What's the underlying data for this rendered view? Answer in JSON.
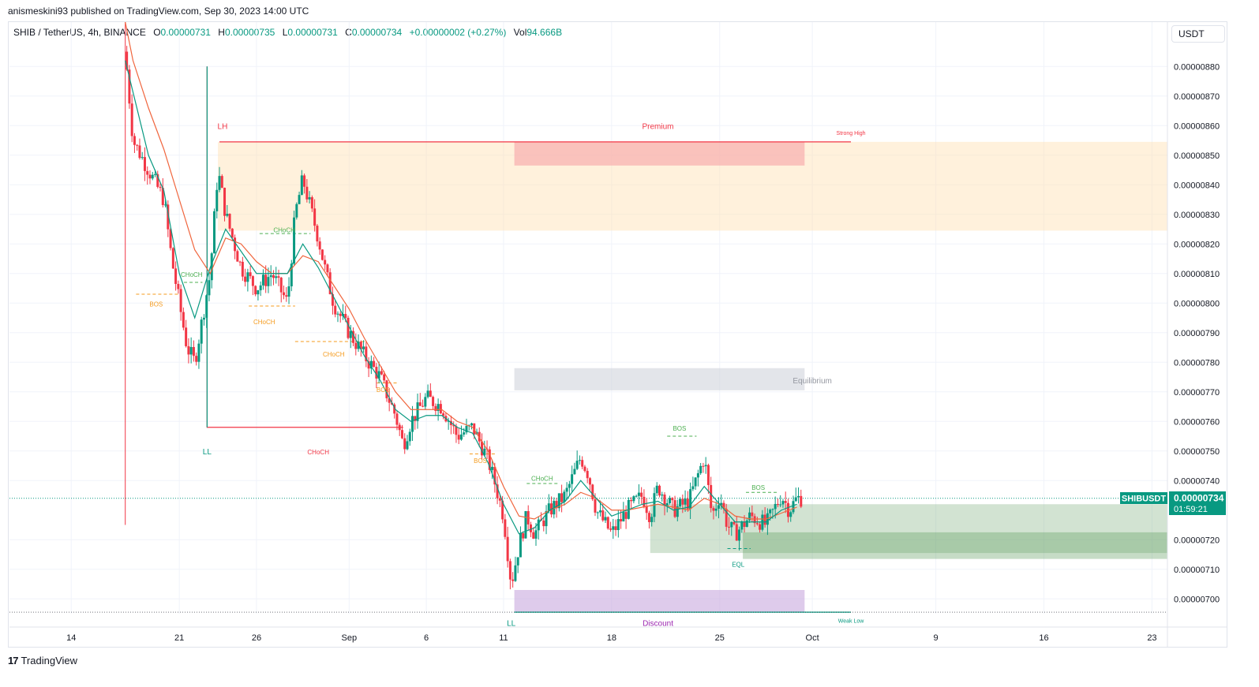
{
  "header": {
    "publisher": "anismeskini93 published on TradingView.com, Sep 30, 2023 14:00 UTC"
  },
  "legend": {
    "symbol": "SHIB / TetherUS, 4h, BINANCE",
    "open_label": "O",
    "open": "0.00000731",
    "high_label": "H",
    "high": "0.00000735",
    "low_label": "L",
    "low": "0.00000731",
    "close_label": "C",
    "close": "0.00000734",
    "change": "+0.00000002 (+0.27%)",
    "vol_label": "Vol",
    "vol": "94.666B"
  },
  "currency_button": "USDT",
  "price_tag": {
    "symbol": "SHIBUSDT",
    "price": "0.00000734",
    "countdown": "01:59:21"
  },
  "footer": {
    "brand": "TradingView"
  },
  "colors": {
    "up": "#089981",
    "down": "#f23645",
    "ema_fast": "#089981",
    "ema_slow": "#f0653d",
    "premium": "#f23645",
    "discount": "#9c27b0",
    "bos": "#f59b1e",
    "choch_bull": "#4caf50"
  },
  "chart_data": {
    "type": "candlestick",
    "title": "",
    "y_ticks": [
      "0.00000880",
      "0.00000870",
      "0.00000860",
      "0.00000850",
      "0.00000840",
      "0.00000830",
      "0.00000820",
      "0.00000810",
      "0.00000800",
      "0.00000790",
      "0.00000780",
      "0.00000770",
      "0.00000760",
      "0.00000750",
      "0.00000740",
      "0.00000720",
      "0.00000710",
      "0.00000700"
    ],
    "y_tick_values": [
      8.8,
      8.7,
      8.6,
      8.5,
      8.4,
      8.3,
      8.2,
      8.1,
      8.0,
      7.9,
      7.8,
      7.7,
      7.6,
      7.5,
      7.4,
      7.2,
      7.1,
      7.0
    ],
    "ylim": [
      6.95,
      8.95
    ],
    "x_ticks": [
      "14",
      "21",
      "26",
      "Sep",
      "6",
      "11",
      "18",
      "25",
      "Oct",
      "9",
      "16",
      "23"
    ],
    "x_tick_values": [
      14,
      21,
      26,
      32,
      37,
      42,
      49,
      56,
      62,
      70,
      77,
      84
    ],
    "xlim": [
      10,
      85
    ],
    "candle_anchors": [
      [
        17.5,
        8.85
      ],
      [
        18,
        8.55
      ],
      [
        19,
        8.45
      ],
      [
        20,
        8.35
      ],
      [
        20.5,
        8.15
      ],
      [
        21,
        8.0
      ],
      [
        21.5,
        7.85
      ],
      [
        22,
        7.8
      ],
      [
        22.5,
        7.95
      ],
      [
        23,
        8.1
      ],
      [
        23.5,
        8.45
      ],
      [
        24,
        8.3
      ],
      [
        25,
        8.12
      ],
      [
        26,
        8.05
      ],
      [
        27,
        8.1
      ],
      [
        28,
        8.0
      ],
      [
        28.5,
        8.3
      ],
      [
        29,
        8.42
      ],
      [
        30,
        8.22
      ],
      [
        30.5,
        8.1
      ],
      [
        31,
        8.0
      ],
      [
        32,
        7.9
      ],
      [
        33,
        7.82
      ],
      [
        34,
        7.75
      ],
      [
        35,
        7.62
      ],
      [
        35.5,
        7.52
      ],
      [
        36,
        7.6
      ],
      [
        37,
        7.68
      ],
      [
        38,
        7.65
      ],
      [
        39,
        7.55
      ],
      [
        40,
        7.58
      ],
      [
        41,
        7.47
      ],
      [
        41.5,
        7.38
      ],
      [
        42,
        7.28
      ],
      [
        42.5,
        7.05
      ],
      [
        43,
        7.18
      ],
      [
        43.5,
        7.28
      ],
      [
        44,
        7.22
      ],
      [
        45,
        7.3
      ],
      [
        46,
        7.35
      ],
      [
        47,
        7.48
      ],
      [
        47.5,
        7.42
      ],
      [
        48,
        7.3
      ],
      [
        49,
        7.22
      ],
      [
        50,
        7.3
      ],
      [
        51,
        7.35
      ],
      [
        51.5,
        7.28
      ],
      [
        52,
        7.38
      ],
      [
        53,
        7.3
      ],
      [
        54,
        7.33
      ],
      [
        55,
        7.48
      ],
      [
        55.5,
        7.28
      ],
      [
        56,
        7.35
      ],
      [
        56.5,
        7.25
      ],
      [
        57,
        7.22
      ],
      [
        58,
        7.28
      ],
      [
        59,
        7.25
      ],
      [
        60,
        7.35
      ],
      [
        60.5,
        7.3
      ],
      [
        61,
        7.34
      ]
    ],
    "ema_fast_anchors": [
      [
        17.5,
        8.82
      ],
      [
        19,
        8.5
      ],
      [
        20,
        8.38
      ],
      [
        21,
        8.1
      ],
      [
        22,
        7.95
      ],
      [
        23,
        8.12
      ],
      [
        24,
        8.25
      ],
      [
        26,
        8.1
      ],
      [
        28,
        8.1
      ],
      [
        29,
        8.2
      ],
      [
        30,
        8.12
      ],
      [
        31,
        8.02
      ],
      [
        32,
        7.92
      ],
      [
        33,
        7.82
      ],
      [
        34,
        7.74
      ],
      [
        35,
        7.64
      ],
      [
        36,
        7.6
      ],
      [
        37,
        7.62
      ],
      [
        38,
        7.62
      ],
      [
        39,
        7.58
      ],
      [
        40,
        7.56
      ],
      [
        41,
        7.46
      ],
      [
        42,
        7.32
      ],
      [
        43,
        7.22
      ],
      [
        44,
        7.24
      ],
      [
        45,
        7.3
      ],
      [
        46,
        7.33
      ],
      [
        47,
        7.4
      ],
      [
        48,
        7.34
      ],
      [
        49,
        7.28
      ],
      [
        50,
        7.3
      ],
      [
        51,
        7.32
      ],
      [
        52,
        7.33
      ],
      [
        53,
        7.3
      ],
      [
        54,
        7.31
      ],
      [
        55,
        7.38
      ],
      [
        56,
        7.32
      ],
      [
        57,
        7.26
      ],
      [
        58,
        7.26
      ],
      [
        59,
        7.26
      ],
      [
        60,
        7.3
      ],
      [
        61,
        7.32
      ]
    ],
    "ema_slow_anchors": [
      [
        17.5,
        8.95
      ],
      [
        18,
        8.82
      ],
      [
        19,
        8.66
      ],
      [
        20,
        8.52
      ],
      [
        21,
        8.35
      ],
      [
        22,
        8.18
      ],
      [
        23,
        8.1
      ],
      [
        24,
        8.22
      ],
      [
        25,
        8.2
      ],
      [
        26,
        8.14
      ],
      [
        27,
        8.1
      ],
      [
        28,
        8.1
      ],
      [
        29,
        8.16
      ],
      [
        30,
        8.14
      ],
      [
        31,
        8.06
      ],
      [
        32,
        7.98
      ],
      [
        33,
        7.88
      ],
      [
        34,
        7.79
      ],
      [
        35,
        7.7
      ],
      [
        36,
        7.64
      ],
      [
        37,
        7.64
      ],
      [
        38,
        7.64
      ],
      [
        39,
        7.6
      ],
      [
        40,
        7.58
      ],
      [
        41,
        7.5
      ],
      [
        42,
        7.38
      ],
      [
        43,
        7.28
      ],
      [
        44,
        7.27
      ],
      [
        45,
        7.3
      ],
      [
        46,
        7.32
      ],
      [
        47,
        7.36
      ],
      [
        48,
        7.34
      ],
      [
        49,
        7.3
      ],
      [
        50,
        7.3
      ],
      [
        51,
        7.31
      ],
      [
        52,
        7.32
      ],
      [
        53,
        7.31
      ],
      [
        54,
        7.3
      ],
      [
        55,
        7.34
      ],
      [
        56,
        7.32
      ],
      [
        57,
        7.28
      ],
      [
        58,
        7.27
      ],
      [
        59,
        7.27
      ],
      [
        60,
        7.29
      ],
      [
        61,
        7.31
      ]
    ],
    "premium_zone": {
      "x": [
        23.5,
        85
      ],
      "y": [
        8.245,
        8.545
      ]
    },
    "premium_core": {
      "x": [
        42.7,
        61.5
      ],
      "y": [
        8.465,
        8.545
      ]
    },
    "equilibrium_zone": {
      "x": [
        42.7,
        61.5
      ],
      "y": [
        7.705,
        7.78
      ]
    },
    "discount_zone": {
      "x": [
        42.7,
        61.5
      ],
      "y": [
        6.955,
        7.03
      ]
    },
    "demand_zone_1": {
      "x": [
        51.5,
        85
      ],
      "y": [
        7.155,
        7.32
      ]
    },
    "demand_zone_2": {
      "x": [
        57.5,
        85
      ],
      "y": [
        7.135,
        7.225
      ]
    },
    "current_price": 7.34,
    "labels": [
      {
        "text": "LH",
        "x": 23.8,
        "y": 8.6,
        "color": "#f23645"
      },
      {
        "text": "Premium",
        "x": 52,
        "y": 8.6,
        "color": "#f23645"
      },
      {
        "text": "Strong High",
        "x": 64.5,
        "y": 8.58,
        "color": "#f23645"
      },
      {
        "text": "Equilibrium",
        "x": 62,
        "y": 7.74,
        "color": "#9598a1"
      },
      {
        "text": "LL",
        "x": 22.8,
        "y": 7.5,
        "color": "#089981"
      },
      {
        "text": "CHoCH",
        "x": 30,
        "y": 7.5,
        "color": "#f23645"
      },
      {
        "text": "CHoCH",
        "x": 27.8,
        "y": 8.25,
        "color": "#4caf50"
      },
      {
        "text": "CHoCH",
        "x": 21.8,
        "y": 8.1,
        "color": "#4caf50"
      },
      {
        "text": "BOS",
        "x": 19.5,
        "y": 8.0,
        "color": "#f59b1e"
      },
      {
        "text": "CHoCH",
        "x": 26.5,
        "y": 7.94,
        "color": "#f59b1e"
      },
      {
        "text": "CHoCH",
        "x": 31,
        "y": 7.83,
        "color": "#f59b1e"
      },
      {
        "text": "BOS",
        "x": 34.2,
        "y": 7.71,
        "color": "#f59b1e"
      },
      {
        "text": "BOS",
        "x": 40.5,
        "y": 7.47,
        "color": "#f59b1e"
      },
      {
        "text": "CHoCH",
        "x": 44.5,
        "y": 7.41,
        "color": "#4caf50"
      },
      {
        "text": "BOS",
        "x": 53.4,
        "y": 7.58,
        "color": "#4caf50"
      },
      {
        "text": "BOS",
        "x": 58.5,
        "y": 7.38,
        "color": "#4caf50"
      },
      {
        "text": "EQL",
        "x": 57.2,
        "y": 7.12,
        "color": "#089981"
      },
      {
        "text": "Discount",
        "x": 52,
        "y": 6.92,
        "color": "#9c27b0"
      },
      {
        "text": "Weak Low",
        "x": 64.5,
        "y": 6.93,
        "color": "#089981"
      },
      {
        "text": "LL",
        "x": 42.5,
        "y": 6.92,
        "color": "#089981"
      }
    ],
    "structure_lines": [
      {
        "points": [
          [
            23.6,
            8.545
          ],
          [
            64.5,
            8.545
          ]
        ],
        "color": "#f23645",
        "dash": false
      },
      {
        "points": [
          [
            22.8,
            8.8
          ],
          [
            22.8,
            7.58
          ],
          [
            35.5,
            7.58
          ]
        ],
        "color": "#f23645",
        "dash": false,
        "first_seg_color": "#089981"
      },
      {
        "points": [
          [
            42.7,
            6.955
          ],
          [
            64.5,
            6.955
          ]
        ],
        "color": "#089981",
        "dash": false
      },
      {
        "points": [
          [
            18.2,
            8.03
          ],
          [
            21,
            8.03
          ]
        ],
        "color": "#f59b1e",
        "dash": true
      },
      {
        "points": [
          [
            25.5,
            7.99
          ],
          [
            28.5,
            7.99
          ]
        ],
        "color": "#f59b1e",
        "dash": true
      },
      {
        "points": [
          [
            28.5,
            7.87
          ],
          [
            33,
            7.87
          ]
        ],
        "color": "#f59b1e",
        "dash": true
      },
      {
        "points": [
          [
            33.8,
            7.73
          ],
          [
            35.2,
            7.73
          ]
        ],
        "color": "#f59b1e",
        "dash": true
      },
      {
        "points": [
          [
            39.8,
            7.49
          ],
          [
            41.5,
            7.49
          ]
        ],
        "color": "#f59b1e",
        "dash": true
      },
      {
        "points": [
          [
            26.2,
            8.235
          ],
          [
            29.5,
            8.235
          ]
        ],
        "color": "#4caf50",
        "dash": true
      },
      {
        "points": [
          [
            21.3,
            8.07
          ],
          [
            22.5,
            8.07
          ]
        ],
        "color": "#4caf50",
        "dash": true
      },
      {
        "points": [
          [
            43.5,
            7.39
          ],
          [
            45.5,
            7.39
          ]
        ],
        "color": "#4caf50",
        "dash": true
      },
      {
        "points": [
          [
            52.6,
            7.55
          ],
          [
            54.5,
            7.55
          ]
        ],
        "color": "#4caf50",
        "dash": true
      },
      {
        "points": [
          [
            57.7,
            7.36
          ],
          [
            59.8,
            7.36
          ]
        ],
        "color": "#4caf50",
        "dash": true
      },
      {
        "points": [
          [
            56.5,
            7.17
          ],
          [
            58,
            7.17
          ]
        ],
        "color": "#089981",
        "dash": true
      }
    ]
  }
}
